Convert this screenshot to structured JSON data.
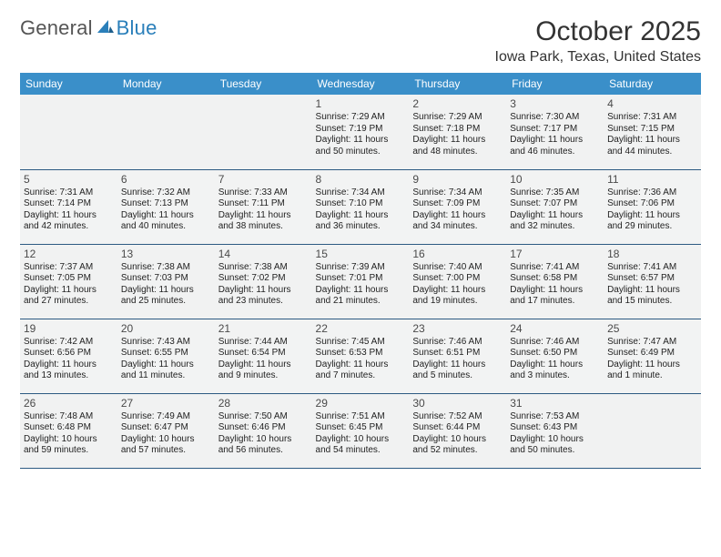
{
  "logo": {
    "text_general": "General",
    "text_blue": "Blue"
  },
  "title": "October 2025",
  "location": "Iowa Park, Texas, United States",
  "day_headers": [
    "Sunday",
    "Monday",
    "Tuesday",
    "Wednesday",
    "Thursday",
    "Friday",
    "Saturday"
  ],
  "colors": {
    "header_bg": "#3a8fc9",
    "header_text": "#ffffff",
    "row_divider": "#2c5a82",
    "cell_bg": "#f1f2f2",
    "logo_blue": "#2a7fba"
  },
  "weeks": [
    [
      null,
      null,
      null,
      {
        "day": "1",
        "sunrise": "Sunrise: 7:29 AM",
        "sunset": "Sunset: 7:19 PM",
        "daylight1": "Daylight: 11 hours",
        "daylight2": "and 50 minutes."
      },
      {
        "day": "2",
        "sunrise": "Sunrise: 7:29 AM",
        "sunset": "Sunset: 7:18 PM",
        "daylight1": "Daylight: 11 hours",
        "daylight2": "and 48 minutes."
      },
      {
        "day": "3",
        "sunrise": "Sunrise: 7:30 AM",
        "sunset": "Sunset: 7:17 PM",
        "daylight1": "Daylight: 11 hours",
        "daylight2": "and 46 minutes."
      },
      {
        "day": "4",
        "sunrise": "Sunrise: 7:31 AM",
        "sunset": "Sunset: 7:15 PM",
        "daylight1": "Daylight: 11 hours",
        "daylight2": "and 44 minutes."
      }
    ],
    [
      {
        "day": "5",
        "sunrise": "Sunrise: 7:31 AM",
        "sunset": "Sunset: 7:14 PM",
        "daylight1": "Daylight: 11 hours",
        "daylight2": "and 42 minutes."
      },
      {
        "day": "6",
        "sunrise": "Sunrise: 7:32 AM",
        "sunset": "Sunset: 7:13 PM",
        "daylight1": "Daylight: 11 hours",
        "daylight2": "and 40 minutes."
      },
      {
        "day": "7",
        "sunrise": "Sunrise: 7:33 AM",
        "sunset": "Sunset: 7:11 PM",
        "daylight1": "Daylight: 11 hours",
        "daylight2": "and 38 minutes."
      },
      {
        "day": "8",
        "sunrise": "Sunrise: 7:34 AM",
        "sunset": "Sunset: 7:10 PM",
        "daylight1": "Daylight: 11 hours",
        "daylight2": "and 36 minutes."
      },
      {
        "day": "9",
        "sunrise": "Sunrise: 7:34 AM",
        "sunset": "Sunset: 7:09 PM",
        "daylight1": "Daylight: 11 hours",
        "daylight2": "and 34 minutes."
      },
      {
        "day": "10",
        "sunrise": "Sunrise: 7:35 AM",
        "sunset": "Sunset: 7:07 PM",
        "daylight1": "Daylight: 11 hours",
        "daylight2": "and 32 minutes."
      },
      {
        "day": "11",
        "sunrise": "Sunrise: 7:36 AM",
        "sunset": "Sunset: 7:06 PM",
        "daylight1": "Daylight: 11 hours",
        "daylight2": "and 29 minutes."
      }
    ],
    [
      {
        "day": "12",
        "sunrise": "Sunrise: 7:37 AM",
        "sunset": "Sunset: 7:05 PM",
        "daylight1": "Daylight: 11 hours",
        "daylight2": "and 27 minutes."
      },
      {
        "day": "13",
        "sunrise": "Sunrise: 7:38 AM",
        "sunset": "Sunset: 7:03 PM",
        "daylight1": "Daylight: 11 hours",
        "daylight2": "and 25 minutes."
      },
      {
        "day": "14",
        "sunrise": "Sunrise: 7:38 AM",
        "sunset": "Sunset: 7:02 PM",
        "daylight1": "Daylight: 11 hours",
        "daylight2": "and 23 minutes."
      },
      {
        "day": "15",
        "sunrise": "Sunrise: 7:39 AM",
        "sunset": "Sunset: 7:01 PM",
        "daylight1": "Daylight: 11 hours",
        "daylight2": "and 21 minutes."
      },
      {
        "day": "16",
        "sunrise": "Sunrise: 7:40 AM",
        "sunset": "Sunset: 7:00 PM",
        "daylight1": "Daylight: 11 hours",
        "daylight2": "and 19 minutes."
      },
      {
        "day": "17",
        "sunrise": "Sunrise: 7:41 AM",
        "sunset": "Sunset: 6:58 PM",
        "daylight1": "Daylight: 11 hours",
        "daylight2": "and 17 minutes."
      },
      {
        "day": "18",
        "sunrise": "Sunrise: 7:41 AM",
        "sunset": "Sunset: 6:57 PM",
        "daylight1": "Daylight: 11 hours",
        "daylight2": "and 15 minutes."
      }
    ],
    [
      {
        "day": "19",
        "sunrise": "Sunrise: 7:42 AM",
        "sunset": "Sunset: 6:56 PM",
        "daylight1": "Daylight: 11 hours",
        "daylight2": "and 13 minutes."
      },
      {
        "day": "20",
        "sunrise": "Sunrise: 7:43 AM",
        "sunset": "Sunset: 6:55 PM",
        "daylight1": "Daylight: 11 hours",
        "daylight2": "and 11 minutes."
      },
      {
        "day": "21",
        "sunrise": "Sunrise: 7:44 AM",
        "sunset": "Sunset: 6:54 PM",
        "daylight1": "Daylight: 11 hours",
        "daylight2": "and 9 minutes."
      },
      {
        "day": "22",
        "sunrise": "Sunrise: 7:45 AM",
        "sunset": "Sunset: 6:53 PM",
        "daylight1": "Daylight: 11 hours",
        "daylight2": "and 7 minutes."
      },
      {
        "day": "23",
        "sunrise": "Sunrise: 7:46 AM",
        "sunset": "Sunset: 6:51 PM",
        "daylight1": "Daylight: 11 hours",
        "daylight2": "and 5 minutes."
      },
      {
        "day": "24",
        "sunrise": "Sunrise: 7:46 AM",
        "sunset": "Sunset: 6:50 PM",
        "daylight1": "Daylight: 11 hours",
        "daylight2": "and 3 minutes."
      },
      {
        "day": "25",
        "sunrise": "Sunrise: 7:47 AM",
        "sunset": "Sunset: 6:49 PM",
        "daylight1": "Daylight: 11 hours",
        "daylight2": "and 1 minute."
      }
    ],
    [
      {
        "day": "26",
        "sunrise": "Sunrise: 7:48 AM",
        "sunset": "Sunset: 6:48 PM",
        "daylight1": "Daylight: 10 hours",
        "daylight2": "and 59 minutes."
      },
      {
        "day": "27",
        "sunrise": "Sunrise: 7:49 AM",
        "sunset": "Sunset: 6:47 PM",
        "daylight1": "Daylight: 10 hours",
        "daylight2": "and 57 minutes."
      },
      {
        "day": "28",
        "sunrise": "Sunrise: 7:50 AM",
        "sunset": "Sunset: 6:46 PM",
        "daylight1": "Daylight: 10 hours",
        "daylight2": "and 56 minutes."
      },
      {
        "day": "29",
        "sunrise": "Sunrise: 7:51 AM",
        "sunset": "Sunset: 6:45 PM",
        "daylight1": "Daylight: 10 hours",
        "daylight2": "and 54 minutes."
      },
      {
        "day": "30",
        "sunrise": "Sunrise: 7:52 AM",
        "sunset": "Sunset: 6:44 PM",
        "daylight1": "Daylight: 10 hours",
        "daylight2": "and 52 minutes."
      },
      {
        "day": "31",
        "sunrise": "Sunrise: 7:53 AM",
        "sunset": "Sunset: 6:43 PM",
        "daylight1": "Daylight: 10 hours",
        "daylight2": "and 50 minutes."
      },
      null
    ]
  ]
}
